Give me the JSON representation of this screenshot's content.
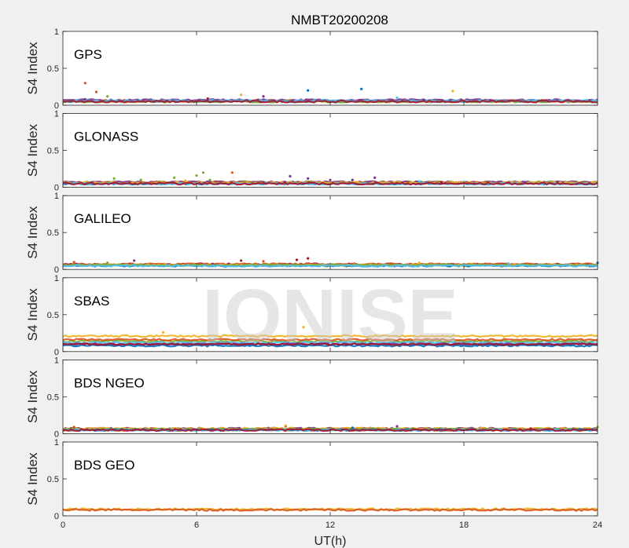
{
  "figure": {
    "title": "NMBT20200208",
    "watermark": "IONISE",
    "xlabel": "UT(h)",
    "ylabel": "S4 Index",
    "xlim": [
      0,
      24
    ],
    "ylim": [
      0,
      1
    ],
    "xticks": [
      "0",
      "6",
      "12",
      "18",
      "24"
    ],
    "yticks": [
      "0",
      "0.5",
      "1"
    ],
    "colors": [
      "#0072BD",
      "#D95319",
      "#EDB120",
      "#7E2F8E",
      "#77AC30",
      "#4DBEEE",
      "#A2142F"
    ]
  },
  "chart_data": [
    {
      "type": "scatter",
      "panel_label": "GPS",
      "xlim": [
        0,
        24
      ],
      "ylim": [
        0,
        1
      ],
      "series": [
        {
          "color": "#0072BD",
          "base": 0.05,
          "x": [
            1.0,
            11.0,
            13.4
          ],
          "y": [
            0.08,
            0.2,
            0.22
          ]
        },
        {
          "color": "#D95319",
          "base": 0.06,
          "x": [
            1.0,
            1.5
          ],
          "y": [
            0.3,
            0.18
          ]
        },
        {
          "color": "#EDB120",
          "base": 0.05,
          "x": [
            8.0,
            17.5
          ],
          "y": [
            0.14,
            0.19
          ]
        },
        {
          "color": "#7E2F8E",
          "base": 0.07,
          "x": [
            9.0
          ],
          "y": [
            0.12
          ]
        },
        {
          "color": "#77AC30",
          "base": 0.05,
          "x": [
            2.0
          ],
          "y": [
            0.12
          ]
        },
        {
          "color": "#4DBEEE",
          "base": 0.06,
          "x": [
            15.0
          ],
          "y": [
            0.1
          ]
        },
        {
          "color": "#A2142F",
          "base": 0.05,
          "x": [
            6.5
          ],
          "y": [
            0.09
          ]
        }
      ]
    },
    {
      "type": "scatter",
      "panel_label": "GLONASS",
      "xlim": [
        0,
        24
      ],
      "ylim": [
        0,
        1
      ],
      "series": [
        {
          "color": "#77AC30",
          "base": 0.07,
          "x": [
            2.3,
            3.5,
            5.0,
            6.0,
            6.3,
            6.6
          ],
          "y": [
            0.12,
            0.1,
            0.13,
            0.16,
            0.2,
            0.1
          ]
        },
        {
          "color": "#7E2F8E",
          "base": 0.07,
          "x": [
            10.2,
            11.0,
            12.0,
            13.0,
            14.0
          ],
          "y": [
            0.15,
            0.12,
            0.1,
            0.1,
            0.13
          ]
        },
        {
          "color": "#D95319",
          "base": 0.06,
          "x": [
            7.6
          ],
          "y": [
            0.2
          ]
        },
        {
          "color": "#0072BD",
          "base": 0.05,
          "x": [
            18.0
          ],
          "y": [
            0.07
          ]
        },
        {
          "color": "#EDB120",
          "base": 0.06,
          "x": [
            5.5
          ],
          "y": [
            0.09
          ]
        },
        {
          "color": "#4DBEEE",
          "base": 0.05,
          "x": [
            16.0
          ],
          "y": [
            0.08
          ]
        },
        {
          "color": "#A2142F",
          "base": 0.05,
          "x": [
            17.0
          ],
          "y": [
            0.07
          ]
        }
      ]
    },
    {
      "type": "scatter",
      "panel_label": "GALILEO",
      "xlim": [
        0,
        24
      ],
      "ylim": [
        0,
        1
      ],
      "series": [
        {
          "color": "#A2142F",
          "base": 0.07,
          "x": [
            8.0,
            10.5,
            11.0
          ],
          "y": [
            0.12,
            0.13,
            0.15
          ]
        },
        {
          "color": "#7E2F8E",
          "base": 0.06,
          "x": [
            3.2,
            13.0
          ],
          "y": [
            0.12,
            0.07
          ]
        },
        {
          "color": "#D95319",
          "base": 0.07,
          "x": [
            0.5,
            9.0
          ],
          "y": [
            0.1,
            0.11
          ]
        },
        {
          "color": "#0072BD",
          "base": 0.05,
          "x": [
            24.0
          ],
          "y": [
            0.09
          ]
        },
        {
          "color": "#EDB120",
          "base": 0.06,
          "x": [
            16.0
          ],
          "y": [
            0.09
          ]
        },
        {
          "color": "#77AC30",
          "base": 0.06,
          "x": [
            2.0
          ],
          "y": [
            0.09
          ]
        },
        {
          "color": "#4DBEEE",
          "base": 0.05,
          "x": [
            20.0
          ],
          "y": [
            0.08
          ]
        }
      ]
    },
    {
      "type": "scatter",
      "panel_label": "SBAS",
      "xlim": [
        0,
        24
      ],
      "ylim": [
        0,
        1
      ],
      "series": [
        {
          "color": "#EDB120",
          "base": 0.21,
          "x": [
            4.5,
            10.8
          ],
          "y": [
            0.26,
            0.33
          ]
        },
        {
          "color": "#77AC30",
          "base": 0.14,
          "x": [],
          "y": []
        },
        {
          "color": "#4DBEEE",
          "base": 0.12,
          "x": [],
          "y": []
        },
        {
          "color": "#7E2F8E",
          "base": 0.1,
          "x": [],
          "y": []
        },
        {
          "color": "#0072BD",
          "base": 0.08,
          "x": [],
          "y": []
        },
        {
          "color": "#D95319",
          "base": 0.16,
          "x": [],
          "y": []
        },
        {
          "color": "#A2142F",
          "base": 0.1,
          "x": [],
          "y": []
        }
      ]
    },
    {
      "type": "scatter",
      "panel_label": "BDS NGEO",
      "xlim": [
        0,
        24
      ],
      "ylim": [
        0,
        1
      ],
      "series": [
        {
          "color": "#7E2F8E",
          "base": 0.07,
          "x": [
            10.0,
            15.0
          ],
          "y": [
            0.1,
            0.1
          ]
        },
        {
          "color": "#EDB120",
          "base": 0.07,
          "x": [
            10.0
          ],
          "y": [
            0.11
          ]
        },
        {
          "color": "#77AC30",
          "base": 0.06,
          "x": [
            24.0
          ],
          "y": [
            0.09
          ]
        },
        {
          "color": "#D95319",
          "base": 0.05,
          "x": [
            0.5
          ],
          "y": [
            0.09
          ]
        },
        {
          "color": "#0072BD",
          "base": 0.05,
          "x": [
            13.0
          ],
          "y": [
            0.08
          ]
        },
        {
          "color": "#4DBEEE",
          "base": 0.05,
          "x": [
            17.0
          ],
          "y": [
            0.07
          ]
        },
        {
          "color": "#A2142F",
          "base": 0.05,
          "x": [
            21.0
          ],
          "y": [
            0.07
          ]
        }
      ]
    },
    {
      "type": "scatter",
      "panel_label": "BDS GEO",
      "xlim": [
        0,
        24
      ],
      "ylim": [
        0,
        1
      ],
      "series": [
        {
          "color": "#EDB120",
          "base": 0.09,
          "x": [],
          "y": []
        },
        {
          "color": "#D95319",
          "base": 0.08,
          "x": [],
          "y": []
        }
      ]
    }
  ]
}
